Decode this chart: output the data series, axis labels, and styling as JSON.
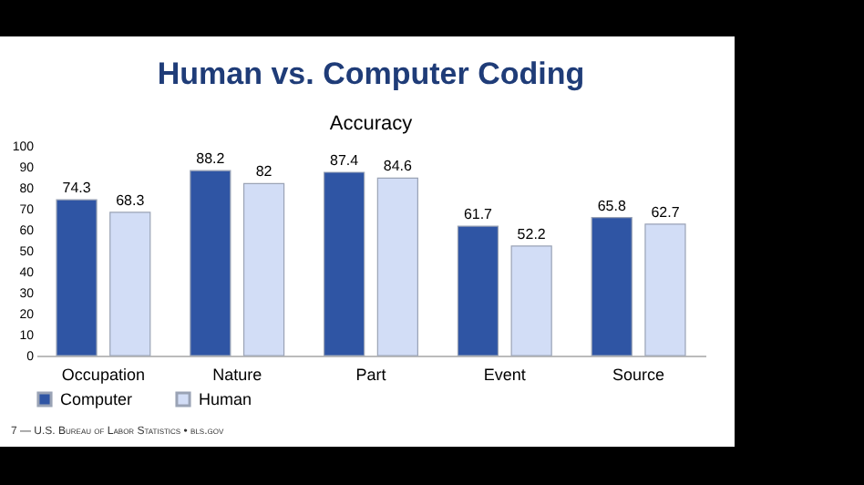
{
  "chart_data": {
    "type": "bar",
    "title": "Human vs. Computer Coding",
    "subtitle": "Accuracy",
    "categories": [
      "Occupation",
      "Nature",
      "Part",
      "Event",
      "Source"
    ],
    "series": [
      {
        "name": "Computer",
        "color": "#2f55a4",
        "values": [
          74.3,
          88.2,
          87.4,
          61.7,
          65.8
        ]
      },
      {
        "name": "Human",
        "color": "#d2ddf6",
        "values": [
          68.3,
          82,
          84.6,
          52.2,
          62.7
        ]
      }
    ],
    "ylim": [
      0,
      100
    ],
    "yticks": [
      0,
      10,
      20,
      30,
      40,
      50,
      60,
      70,
      80,
      90,
      100
    ],
    "grid": false,
    "legend": "bottom",
    "data_labels": true,
    "annotations": [
      "7 — U.S. Bureau of Labor Statistics • bls.gov"
    ]
  }
}
